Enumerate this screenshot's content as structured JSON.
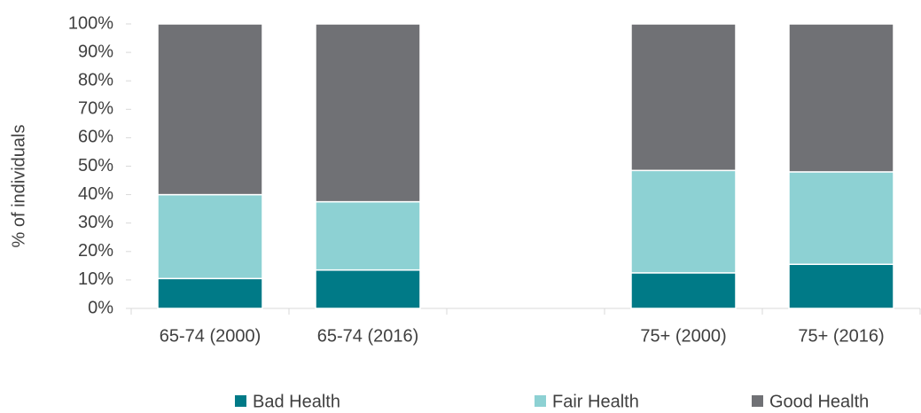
{
  "chart_data": {
    "type": "bar",
    "stacked": true,
    "y_label": "% of individuals",
    "categories": [
      "65-74 (2000)",
      "65-74 (2016)",
      null,
      "75+ (2000)",
      "75+ (2016)"
    ],
    "series": [
      {
        "name": "Bad Health",
        "color": "#007a87",
        "values": [
          10.5,
          13.5,
          null,
          12.5,
          15.5
        ]
      },
      {
        "name": "Fair Health",
        "color": "#8dd1d3",
        "values": [
          29.5,
          24,
          null,
          36,
          32.5
        ]
      },
      {
        "name": "Good Health",
        "color": "#707175",
        "values": [
          60,
          62.5,
          null,
          51.5,
          52
        ]
      }
    ],
    "ylim": [
      0,
      100
    ],
    "yticks": [
      {
        "value": 0,
        "label": "0%"
      },
      {
        "value": 10,
        "label": "10%"
      },
      {
        "value": 20,
        "label": "20%"
      },
      {
        "value": 30,
        "label": "30%"
      },
      {
        "value": 40,
        "label": "40%"
      },
      {
        "value": 50,
        "label": "50%"
      },
      {
        "value": 60,
        "label": "60%"
      },
      {
        "value": 70,
        "label": "70%"
      },
      {
        "value": 80,
        "label": "80%"
      },
      {
        "value": 90,
        "label": "90%"
      },
      {
        "value": 100,
        "label": "100%"
      }
    ],
    "legend": "bottom"
  }
}
